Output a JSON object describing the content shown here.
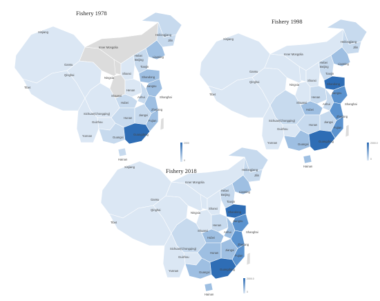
{
  "colors": {
    "base": "#dbe7f4",
    "light": "#c7daee",
    "mid": "#9ebfe2",
    "deep": "#5b93cf",
    "dark": "#2e6db5",
    "nodata": "#dcdcdc",
    "border": "#ffffff"
  },
  "maps": [
    {
      "title": "Fishery 1978",
      "labels": [
        "Xinjiang",
        "Heilongjiang",
        "Jilin",
        "Inner Mongolia",
        "Gansu",
        "Hebei",
        "Beijing",
        "Liaoning",
        "Qinghai",
        "Ningxia",
        "Shanxi",
        "Tianjin",
        "Tibet",
        "Henan",
        "Shandong",
        "Shaanxi",
        "Jiangsu",
        "Hubei",
        "Anhui",
        "Shanghai",
        "Sichuan(Chongqing)",
        "Zhejiang",
        "Guizhou",
        "Hunan",
        "Jiangxi",
        "Fujian",
        "Yunnan",
        "Guangxi",
        "Guangdong",
        "Hainan"
      ],
      "legend": {
        "max": "2000",
        "min": "0"
      }
    },
    {
      "title": "Fishery 1998",
      "labels": [
        "Xinjiang",
        "Heilongjiang",
        "Jilin",
        "Inner Mongolia",
        "Gansu",
        "Hebei",
        "Beijing",
        "Liaoning",
        "Qinghai",
        "Ningxia",
        "Shanxi",
        "Tianjin",
        "Tibet",
        "Henan",
        "Shandong",
        "Shaanxi",
        "Jiangsu",
        "Hubei",
        "Anhui",
        "Shanghai",
        "Sichuan(Chongqing)",
        "Zhejiang",
        "Guizhou",
        "Hunan",
        "Jiangxi",
        "Fujian",
        "Yunnan",
        "Guangxi",
        "Guangdong",
        "Hainan"
      ],
      "legend": {
        "max": "2000.0",
        "min": "0"
      }
    },
    {
      "title": "Fishery 2018",
      "labels": [
        "Xinjiang",
        "Heilongjiang",
        "Jilin",
        "Inner Mongolia",
        "Gansu",
        "Hebei",
        "Beijing",
        "Liaoning",
        "Qinghai",
        "Ningxia",
        "Shanxi",
        "Tianjin",
        "Tibet",
        "Henan",
        "Shandong",
        "Shaanxi",
        "Jiangsu",
        "Hubei",
        "Anhui",
        "Shanghai",
        "Sichuan(Chongqing)",
        "Zhejiang",
        "Guizhou",
        "Hunan",
        "Jiangxi",
        "Fujian",
        "Yunnan",
        "Guangxi",
        "Guangdong",
        "Hainan"
      ],
      "legend": {
        "max": "2000.0",
        "min": "0"
      }
    }
  ],
  "region_levels": [
    {
      "Xinjiang": "base",
      "Tibet": "base",
      "Qinghai": "base",
      "Gansu": "nodata",
      "InnerMongolia": "nodata",
      "Ningxia": "nodata",
      "Shaanxi": "nodata",
      "Heilongjiang": "light",
      "Jilin": "light",
      "Liaoning": "mid",
      "HebeiBeijing": "light",
      "Shanxi": "base",
      "Henan": "base",
      "Shandong": "mid",
      "Jiangsu": "mid",
      "Anhui": "light",
      "Hubei": "light",
      "Zhejiang": "mid",
      "Sichuan": "base",
      "Guizhou": "base",
      "Hunan": "light",
      "Jiangxi": "light",
      "Fujian": "mid",
      "Yunnan": "base",
      "Guangxi": "light",
      "Guangdong": "dark",
      "Hainan": "light",
      "Taiwan": "nodata"
    },
    {
      "Xinjiang": "base",
      "Tibet": "base",
      "Qinghai": "base",
      "Gansu": "base",
      "InnerMongolia": "base",
      "Ningxia": "base",
      "Shaanxi": "base",
      "Heilongjiang": "light",
      "Jilin": "light",
      "Liaoning": "mid",
      "HebeiBeijing": "light",
      "Shanxi": "base",
      "Henan": "light",
      "Shandong": "dark",
      "Jiangsu": "deep",
      "Anhui": "light",
      "Hubei": "mid",
      "Zhejiang": "deep",
      "Sichuan": "light",
      "Guizhou": "base",
      "Hunan": "light",
      "Jiangxi": "light",
      "Fujian": "deep",
      "Yunnan": "base",
      "Guangxi": "mid",
      "Guangdong": "dark",
      "Hainan": "mid",
      "Taiwan": "nodata"
    },
    {
      "Xinjiang": "base",
      "Tibet": "base",
      "Qinghai": "base",
      "Gansu": "base",
      "InnerMongolia": "base",
      "Ningxia": "base",
      "Shaanxi": "base",
      "Heilongjiang": "light",
      "Jilin": "light",
      "Liaoning": "mid",
      "HebeiBeijing": "light",
      "Shanxi": "base",
      "Henan": "light",
      "Shandong": "dark",
      "Jiangsu": "deep",
      "Anhui": "mid",
      "Hubei": "mid",
      "Zhejiang": "deep",
      "Sichuan": "light",
      "Guizhou": "base",
      "Hunan": "mid",
      "Jiangxi": "mid",
      "Fujian": "deep",
      "Yunnan": "base",
      "Guangxi": "mid",
      "Guangdong": "dark",
      "Hainan": "mid",
      "Taiwan": "nodata"
    }
  ]
}
